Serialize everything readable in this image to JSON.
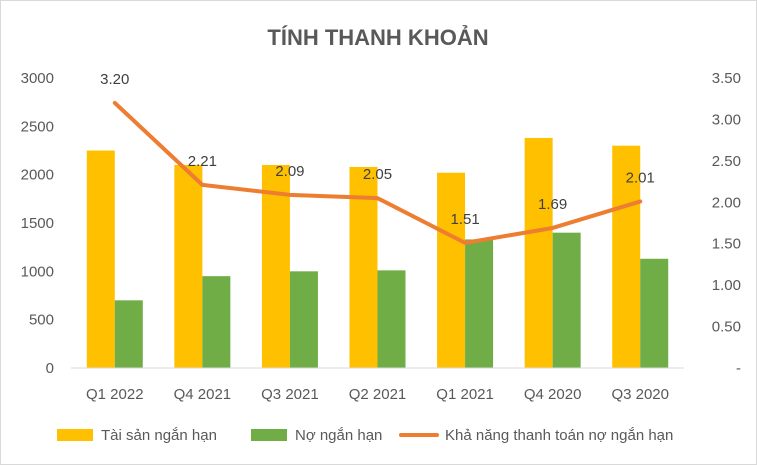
{
  "chart_data": {
    "type": "bar",
    "title": "TÍNH THANH KHOẢN",
    "categories": [
      "Q1 2022",
      "Q4 2021",
      "Q3 2021",
      "Q2 2021",
      "Q1 2021",
      "Q4 2020",
      "Q3 2020"
    ],
    "series": [
      {
        "name": "Tài sản ngắn hạn",
        "type": "bar",
        "axis": "left",
        "color": "#FFC000",
        "values": [
          2250,
          2100,
          2100,
          2080,
          2020,
          2380,
          2300
        ]
      },
      {
        "name": "Nợ ngắn hạn",
        "type": "bar",
        "axis": "left",
        "color": "#70AD47",
        "values": [
          700,
          950,
          1000,
          1010,
          1330,
          1400,
          1130
        ]
      },
      {
        "name": "Khả năng thanh toán nợ ngắn hạn",
        "type": "line",
        "axis": "right",
        "color": "#ED7D31",
        "values": [
          3.2,
          2.21,
          2.09,
          2.05,
          1.51,
          1.69,
          2.01
        ],
        "labels": [
          "3.20",
          "2.21",
          "2.09",
          "2.05",
          "1.51",
          "1.69",
          "2.01"
        ]
      }
    ],
    "y_left": {
      "min": 0,
      "max": 3000,
      "ticks": [
        "0",
        "500",
        "1000",
        "1500",
        "2000",
        "2500",
        "3000"
      ]
    },
    "y_right": {
      "min": 0,
      "max": 3.5,
      "ticks": [
        "-",
        "0.50",
        "1.00",
        "1.50",
        "2.00",
        "2.50",
        "3.00",
        "3.50"
      ]
    },
    "grid": false,
    "legend_position": "bottom"
  }
}
